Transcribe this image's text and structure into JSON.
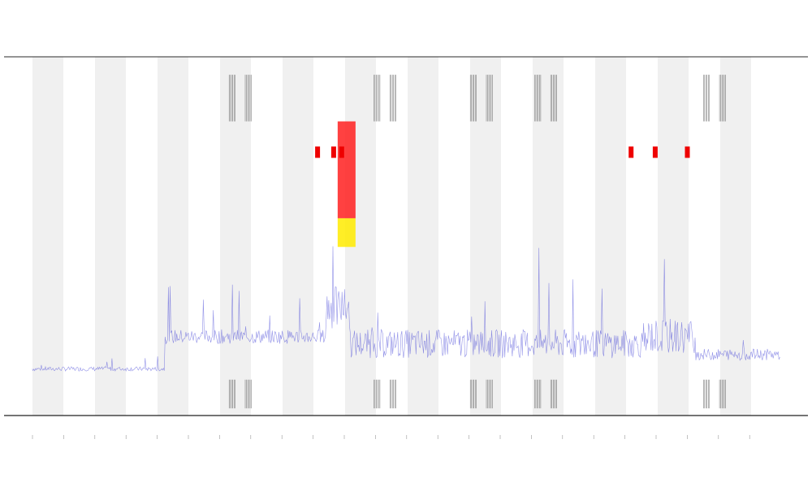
{
  "chart_data": {
    "type": "line",
    "title": "",
    "xlabel": "",
    "ylabel": "",
    "grid": false,
    "legend": "none",
    "shaded_band_count": 12,
    "x_tick_count": 24,
    "series": [
      {
        "color": "#3b3bd6",
        "baseline": 0.12,
        "segments": [
          {
            "from": 0.0,
            "to": 0.2,
            "level": 0.13,
            "noise": 0.03
          },
          {
            "from": 0.2,
            "to": 0.4,
            "level": 0.22,
            "noise": 0.1
          },
          {
            "from": 0.4,
            "to": 0.43,
            "level": 0.3,
            "noise": 0.3
          },
          {
            "from": 0.43,
            "to": 0.8,
            "level": 0.2,
            "noise": 0.2
          },
          {
            "from": 0.8,
            "to": 0.86,
            "level": 0.22,
            "noise": 0.25
          },
          {
            "from": 0.86,
            "to": 1.0,
            "level": 0.17,
            "noise": 0.08
          }
        ]
      }
    ],
    "threshold_bands": [
      {
        "name": "",
        "color": "#ffeb00",
        "level_from": 0.47,
        "level_to": 0.55
      },
      {
        "name": "",
        "color": "#ff2020",
        "level_from": 0.55,
        "level_to": 0.82
      }
    ],
    "event_marks": [
      {
        "x": 0.39,
        "kind": "red"
      },
      {
        "x": 0.41,
        "kind": "red"
      },
      {
        "x": 0.42,
        "kind": "red"
      },
      {
        "x": 0.78,
        "kind": "red"
      },
      {
        "x": 0.81,
        "kind": "red"
      },
      {
        "x": 0.85,
        "kind": "red"
      },
      {
        "x": 0.28,
        "kind": "gray"
      },
      {
        "x": 0.3,
        "kind": "gray"
      },
      {
        "x": 0.46,
        "kind": "gray"
      },
      {
        "x": 0.48,
        "kind": "gray"
      },
      {
        "x": 0.58,
        "kind": "gray"
      },
      {
        "x": 0.6,
        "kind": "gray"
      },
      {
        "x": 0.66,
        "kind": "gray"
      },
      {
        "x": 0.68,
        "kind": "gray"
      },
      {
        "x": 0.87,
        "kind": "gray"
      },
      {
        "x": 0.89,
        "kind": "gray"
      }
    ]
  }
}
